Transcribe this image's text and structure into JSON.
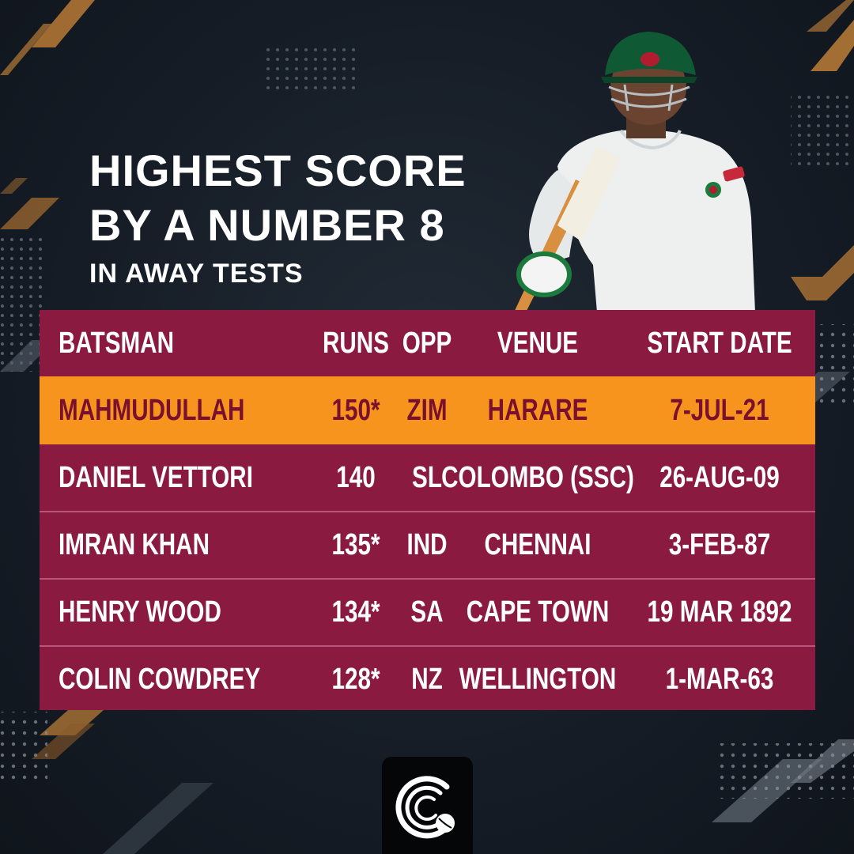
{
  "title": {
    "line1": "HIGHEST SCORE",
    "line2": "BY A NUMBER 8",
    "subtitle": "IN AWAY TESTS"
  },
  "table": {
    "headers": {
      "batsman": "BATSMAN",
      "runs": "RUNS",
      "opp": "OPP",
      "venue": "VENUE",
      "start_date": "START DATE"
    },
    "rows": [
      {
        "batsman": "MAHMUDULLAH",
        "runs": "150*",
        "opp": "ZIM",
        "venue": "HARARE",
        "start_date": "7-JUL-21",
        "highlight": true
      },
      {
        "batsman": "DANIEL VETTORI",
        "runs": "140",
        "opp": "SL",
        "venue": "COLOMBO (SSC)",
        "start_date": "26-AUG-09"
      },
      {
        "batsman": "IMRAN KHAN",
        "runs": "135*",
        "opp": "IND",
        "venue": "CHENNAI",
        "start_date": "3-FEB-87"
      },
      {
        "batsman": "HENRY WOOD",
        "runs": "134*",
        "opp": "SA",
        "venue": "CAPE TOWN",
        "start_date": "19 MAR 1892"
      },
      {
        "batsman": "COLIN COWDREY",
        "runs": "128*",
        "opp": "NZ",
        "venue": "WELLINGTON",
        "start_date": "1-MAR-63"
      }
    ]
  },
  "colors": {
    "background": "#161d27",
    "table_row": "#8b1a40",
    "highlight_row": "#f7941d",
    "highlight_text": "#7a1030",
    "accent_stripe": "#c8843a"
  },
  "icons": {
    "player": "cricket-batsman-photo",
    "brand": "cricket-ball-logo-icon"
  }
}
